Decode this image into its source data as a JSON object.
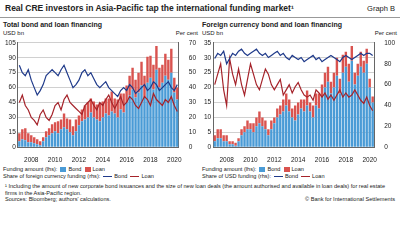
{
  "title": "Real CRE investors in Asia-Pacific tap the international funding market¹",
  "graph_label": "Graph B",
  "footnote": "¹ Including the amount of new corporate bond issuances and the size of new loan deals (the amount authorised and available in loan deals) for real estate firms in the Asia-Pacific region.",
  "sources": "Sources: Bloomberg; authors' calculations.",
  "copyright": "© Bank for International Settlements",
  "chart_data": [
    {
      "type": "bar",
      "title": "Total bond and loan financing",
      "y_label": "USD bn",
      "y2_label": "Per cent",
      "annotations": [
        "Funding amount (lhs):",
        "Share of foreign currency funding (rhs):"
      ],
      "categories": [
        null,
        null,
        null,
        null,
        "2008",
        null,
        null,
        null,
        null,
        null,
        null,
        null,
        "2010",
        null,
        null,
        null,
        null,
        null,
        null,
        null,
        "2012",
        null,
        null,
        null,
        null,
        null,
        null,
        null,
        "2014",
        null,
        null,
        null,
        null,
        null,
        null,
        null,
        "2016",
        null,
        null,
        null,
        null,
        null,
        null,
        null,
        "2018",
        null,
        null,
        null,
        null,
        null,
        null,
        null,
        "2020",
        null
      ],
      "series": [
        {
          "name": "Bond",
          "type": "bar",
          "color": "#4a9bd6",
          "values": [
            6,
            8,
            7,
            5,
            5,
            4,
            3,
            2,
            6,
            10,
            12,
            14,
            16,
            14,
            18,
            20,
            18,
            15,
            12,
            16,
            22,
            26,
            28,
            30,
            35,
            30,
            28,
            26,
            30,
            34,
            32,
            36,
            34,
            30,
            38,
            35,
            45,
            52,
            58,
            50,
            55,
            62,
            50,
            65,
            70,
            58,
            78,
            60,
            65,
            72,
            68,
            75,
            55,
            48
          ]
        },
        {
          "name": "Loan",
          "type": "bar",
          "color": "#d9534f",
          "values": [
            8,
            10,
            12,
            9,
            7,
            6,
            5,
            4,
            4,
            6,
            7,
            9,
            9,
            12,
            10,
            14,
            11,
            13,
            9,
            12,
            10,
            12,
            14,
            15,
            14,
            16,
            15,
            18,
            16,
            15,
            17,
            20,
            15,
            18,
            16,
            19,
            17,
            20,
            22,
            18,
            20,
            24,
            22,
            26,
            22,
            25,
            24,
            20,
            18,
            22,
            20,
            24,
            15,
            12
          ]
        },
        {
          "name": "Bond",
          "type": "line",
          "axis": "y2",
          "color": "#1f3a8a",
          "values": [
            55,
            50,
            48,
            52,
            45,
            40,
            35,
            38,
            42,
            48,
            50,
            52,
            50,
            48,
            52,
            55,
            50,
            45,
            40,
            42,
            45,
            50,
            52,
            48,
            50,
            46,
            42,
            40,
            42,
            44,
            40,
            38,
            36,
            34,
            38,
            40,
            38,
            42,
            40,
            36,
            38,
            40,
            42,
            38,
            40,
            44,
            42,
            38,
            40,
            42,
            44,
            40,
            38,
            42
          ]
        },
        {
          "name": "Loan",
          "type": "line",
          "axis": "y2",
          "color": "#a5232a",
          "values": [
            30,
            35,
            28,
            25,
            20,
            18,
            15,
            22,
            25,
            20,
            18,
            22,
            28,
            30,
            25,
            32,
            35,
            30,
            28,
            26,
            24,
            22,
            28,
            30,
            32,
            28,
            25,
            30,
            28,
            32,
            35,
            30,
            26,
            30,
            34,
            28,
            30,
            34,
            32,
            28,
            26,
            30,
            34,
            32,
            28,
            36,
            32,
            30,
            28,
            32,
            30,
            34,
            28,
            24
          ]
        }
      ],
      "ylim": [
        0,
        105
      ],
      "yticks": [
        0,
        15,
        30,
        45,
        60,
        75,
        90,
        105
      ],
      "y2lim": [
        0,
        70
      ],
      "y2ticks": [
        0,
        10,
        20,
        30,
        40,
        50,
        60,
        70
      ],
      "stacked": true,
      "grid": true,
      "legend": "bottom"
    },
    {
      "type": "bar",
      "title": "Foreign currency bond and loan financing",
      "y_label": "USD bn",
      "y2_label": "Per cent",
      "annotations": [
        "Funding amount (lhs):",
        "Share of USD funding (rhs):"
      ],
      "categories": [
        null,
        null,
        null,
        null,
        "2008",
        null,
        null,
        null,
        null,
        null,
        null,
        null,
        "2010",
        null,
        null,
        null,
        null,
        null,
        null,
        null,
        "2012",
        null,
        null,
        null,
        null,
        null,
        null,
        null,
        "2014",
        null,
        null,
        null,
        null,
        null,
        null,
        null,
        "2016",
        null,
        null,
        null,
        null,
        null,
        null,
        null,
        "2018",
        null,
        null,
        null,
        null,
        null,
        null,
        null,
        "2020",
        null
      ],
      "series": [
        {
          "name": "Bond",
          "type": "bar",
          "color": "#4a9bd6",
          "values": [
            2,
            3,
            3,
            2,
            2,
            1,
            1,
            0.5,
            2,
            4,
            5,
            6,
            6,
            5,
            7,
            8,
            7,
            6,
            4,
            6,
            8,
            10,
            11,
            12,
            14,
            12,
            10,
            9,
            11,
            13,
            12,
            14,
            12,
            10,
            14,
            13,
            17,
            20,
            22,
            18,
            20,
            24,
            18,
            25,
            27,
            22,
            29,
            21,
            24,
            27,
            25,
            28,
            20,
            15
          ]
        },
        {
          "name": "Loan",
          "type": "bar",
          "color": "#d9534f",
          "values": [
            2,
            3,
            3,
            2,
            2,
            1,
            1,
            1,
            1,
            2,
            2,
            3,
            2,
            3,
            3,
            4,
            3,
            3,
            2,
            3,
            2,
            3,
            3,
            4,
            4,
            4,
            3,
            5,
            4,
            3,
            4,
            5,
            3,
            4,
            4,
            5,
            4,
            5,
            5,
            4,
            5,
            6,
            5,
            6,
            5,
            6,
            5,
            4,
            4,
            5,
            4,
            5,
            3,
            2
          ]
        },
        {
          "name": "Bond",
          "type": "line",
          "axis": "y2",
          "color": "#1f3a8a",
          "values": [
            85,
            90,
            88,
            92,
            80,
            85,
            90,
            88,
            92,
            94,
            90,
            88,
            90,
            92,
            94,
            90,
            88,
            90,
            86,
            88,
            90,
            92,
            88,
            90,
            86,
            84,
            88,
            86,
            84,
            86,
            82,
            84,
            86,
            88,
            84,
            86,
            82,
            84,
            86,
            88,
            86,
            84,
            82,
            86,
            88,
            86,
            84,
            86,
            88,
            90,
            88,
            90,
            90,
            88
          ]
        },
        {
          "name": "Loan",
          "type": "line",
          "axis": "y2",
          "color": "#a5232a",
          "values": [
            60,
            70,
            80,
            55,
            40,
            85,
            70,
            60,
            75,
            60,
            50,
            65,
            80,
            70,
            60,
            55,
            65,
            75,
            70,
            60,
            55,
            60,
            65,
            50,
            55,
            60,
            52,
            58,
            62,
            55,
            50,
            48,
            50,
            45,
            55,
            52,
            48,
            52,
            46,
            50,
            45,
            50,
            55,
            48,
            52,
            48,
            50,
            55,
            50,
            45,
            42,
            48,
            40,
            35
          ]
        }
      ],
      "ylim": [
        0,
        35
      ],
      "yticks": [
        0,
        5,
        10,
        15,
        20,
        25,
        30,
        35
      ],
      "y2lim": [
        0,
        100
      ],
      "y2ticks": [
        0,
        20,
        40,
        60,
        80,
        100
      ],
      "stacked": true,
      "grid": true,
      "legend": "bottom"
    }
  ]
}
